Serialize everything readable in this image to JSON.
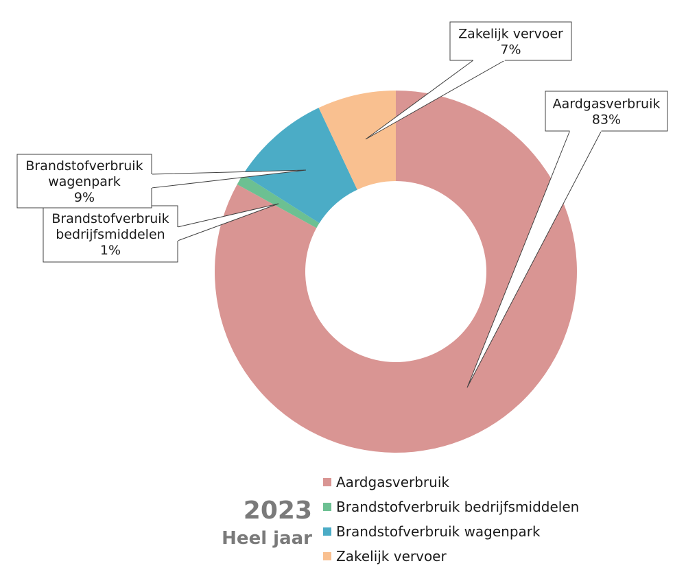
{
  "chart_data": {
    "type": "pie",
    "variant": "donut",
    "categories": [
      "Aardgasverbruik",
      "Brandstofverbruik bedrijfsmiddelen",
      "Brandstofverbruik wagenpark",
      "Zakelijk vervoer"
    ],
    "values": [
      83,
      1,
      9,
      7
    ],
    "value_unit": "%",
    "colors": [
      "#d99593",
      "#6cc092",
      "#4bacc6",
      "#f9c090"
    ],
    "legend_position": "bottom-right",
    "callouts": [
      {
        "lines": [
          "Aardgasverbruik",
          "83%"
        ]
      },
      {
        "lines": [
          "Brandstofverbruik",
          "bedrijfsmiddelen",
          "1%"
        ]
      },
      {
        "lines": [
          "Brandstofverbruik",
          "wagenpark",
          "9%"
        ]
      },
      {
        "lines": [
          "Zakelijk vervoer",
          "7%"
        ]
      }
    ]
  },
  "caption": {
    "year": "2023",
    "period": "Heel jaar"
  }
}
